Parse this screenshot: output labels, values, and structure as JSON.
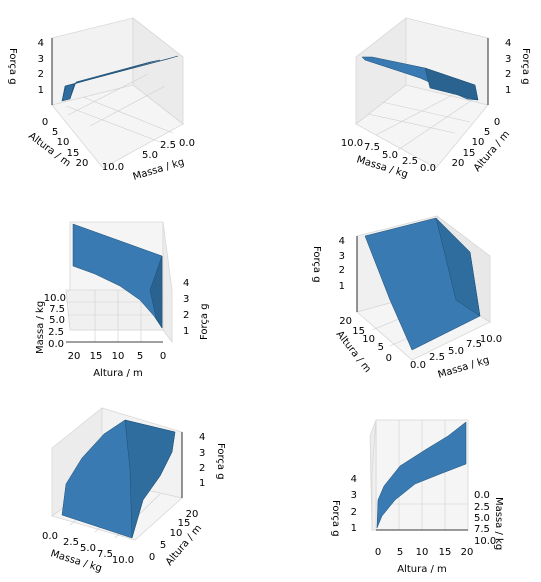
{
  "chart_data": [
    {
      "type": "surface3d",
      "xlabel": "Massa / kg",
      "ylabel": "Altura / m",
      "zlabel": "Força g",
      "mass_ticks": [
        "0.0",
        "2.5",
        "5.0",
        "7.5",
        "10.0"
      ],
      "height_ticks": [
        "0",
        "5",
        "10",
        "15",
        "20"
      ],
      "force_ticks": [
        "1",
        "2",
        "3",
        "4"
      ],
      "xlim": [
        0,
        10
      ],
      "ylim": [
        0,
        20
      ],
      "zlim": [
        0.6,
        4
      ],
      "surface_color": "#3a7ab2",
      "x": [
        0.0,
        2.5,
        5.0,
        7.5,
        10.0
      ],
      "y": [
        0,
        5,
        10,
        15,
        20
      ],
      "z_rows_by_height": [
        [
          1.0,
          1.0,
          1.0,
          1.0,
          1.0
        ],
        [
          2.4,
          2.4,
          2.4,
          2.4,
          2.4
        ],
        [
          3.0,
          3.0,
          3.0,
          3.0,
          3.0
        ],
        [
          3.4,
          3.4,
          3.4,
          3.4,
          3.4
        ],
        [
          3.7,
          3.7,
          3.7,
          3.7,
          3.7
        ]
      ]
    },
    {
      "type": "surface3d",
      "xlabel": "Massa / kg",
      "ylabel": "Altura / m",
      "zlabel": "Força g",
      "mass_ticks": [
        "10.0",
        "7.5",
        "5.0",
        "2.5",
        "0.0"
      ],
      "height_ticks": [
        "0",
        "5",
        "10",
        "15",
        "20"
      ],
      "force_ticks": [
        "1",
        "2",
        "3",
        "4"
      ],
      "surface_color": "#3a7ab2"
    },
    {
      "type": "surface3d",
      "xlabel": "Altura / m",
      "ylabel": "Massa / kg",
      "zlabel": "Força g",
      "height_ticks": [
        "20",
        "15",
        "10",
        "5",
        "0"
      ],
      "mass_ticks": [
        "0.0",
        "2.5",
        "5.0",
        "7.5",
        "10.0"
      ],
      "force_ticks": [
        "1",
        "2",
        "3",
        "4"
      ],
      "surface_color": "#3a7ab2"
    },
    {
      "type": "surface3d",
      "xlabel": "Massa / kg",
      "ylabel": "Altura / m",
      "zlabel": "Força g",
      "mass_ticks": [
        "0.0",
        "2.5",
        "5.0",
        "7.5",
        "10.0"
      ],
      "height_ticks": [
        "0",
        "5",
        "10",
        "15",
        "20"
      ],
      "force_ticks": [
        "1",
        "2",
        "3",
        "4"
      ],
      "surface_color": "#3a7ab2"
    },
    {
      "type": "surface3d",
      "xlabel": "Massa / kg",
      "ylabel": "Altura / m",
      "zlabel": "Força g",
      "mass_ticks": [
        "0.0",
        "2.5",
        "5.0",
        "7.5",
        "10.0"
      ],
      "height_ticks": [
        "0",
        "5",
        "10",
        "15",
        "20"
      ],
      "force_ticks": [
        "1",
        "2",
        "3",
        "4"
      ],
      "surface_color": "#3a7ab2"
    },
    {
      "type": "surface3d",
      "xlabel": "Altura / m",
      "ylabel": "Massa / kg",
      "zlabel": "Força g",
      "height_ticks": [
        "0",
        "5",
        "10",
        "15",
        "20"
      ],
      "mass_ticks": [
        "0.0",
        "2.5",
        "5.0",
        "7.5",
        "10.0"
      ],
      "force_ticks": [
        "1",
        "2",
        "3",
        "4"
      ],
      "surface_color": "#3a7ab2"
    }
  ]
}
